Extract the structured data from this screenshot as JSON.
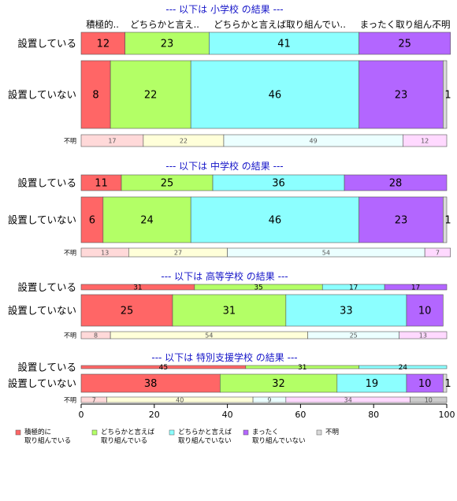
{
  "chart_data": {
    "type": "bar",
    "orientation": "horizontal",
    "stacked": true,
    "xlim": [
      0,
      100
    ],
    "x_ticks": [
      "0",
      "20",
      "40",
      "60",
      "80",
      "100"
    ],
    "column_headers": [
      "積極的..",
      "どちらかと言え..",
      "どちらかと言えば取り組んでい..",
      "まったく取り組ん..",
      "不明"
    ],
    "legend": [
      {
        "label": "積極的に\n取り組んでいる",
        "color": "#FF6666"
      },
      {
        "label": "どちらかと言えば\n取り組んでいる",
        "color": "#B3FF66"
      },
      {
        "label": "どちらかと言えば\n取り組んでいない",
        "color": "#8CFFFF"
      },
      {
        "label": "まったく\n取り組んでいない",
        "color": "#B366FF"
      },
      {
        "label": "不明",
        "color": "#D9D9D9"
      }
    ],
    "colors": {
      "main": [
        "#FF6666",
        "#B3FF66",
        "#8CFFFF",
        "#B366FF",
        "#D9D9D9"
      ],
      "unknown_row": [
        "#FFD9D9",
        "#FFFFD9",
        "#EBFFFF",
        "#FFD9FF"
      ],
      "title": "#1515C8"
    },
    "groups": [
      {
        "title": "--- 以下は 小学校 の結果 ---",
        "rows": [
          {
            "label": "設置している",
            "values": [
              12,
              23,
              41,
              25,
              0
            ]
          },
          {
            "label": "設置していない",
            "values": [
              8,
              22,
              46,
              23,
              1
            ]
          }
        ],
        "unknown_row": {
          "label": "不明",
          "values": [
            17,
            22,
            49,
            12
          ]
        }
      },
      {
        "title": "--- 以下は 中学校 の結果 ---",
        "rows": [
          {
            "label": "設置している",
            "values": [
              11,
              25,
              36,
              28,
              0
            ]
          },
          {
            "label": "設置していない",
            "values": [
              6,
              24,
              46,
              23,
              1
            ]
          }
        ],
        "unknown_row": {
          "label": "不明",
          "values": [
            13,
            27,
            54,
            7
          ]
        }
      },
      {
        "title": "--- 以下は 高等学校 の結果 ---",
        "rows": [
          {
            "label": "設置している",
            "values": [
              31,
              35,
              17,
              17,
              0
            ]
          },
          {
            "label": "設置していない",
            "values": [
              25,
              31,
              33,
              10,
              0
            ]
          }
        ],
        "unknown_row": {
          "label": "不明",
          "values": [
            8,
            54,
            25,
            13
          ]
        }
      },
      {
        "title": "--- 以下は 特別支援学校 の結果 ---",
        "rows": [
          {
            "label": "設置している",
            "values": [
              45,
              31,
              24,
              0,
              0
            ]
          },
          {
            "label": "設置していない",
            "values": [
              38,
              32,
              19,
              10,
              1
            ]
          }
        ],
        "unknown_row": {
          "label": "不明",
          "values": [
            7,
            40,
            9,
            34,
            10
          ]
        }
      }
    ]
  }
}
